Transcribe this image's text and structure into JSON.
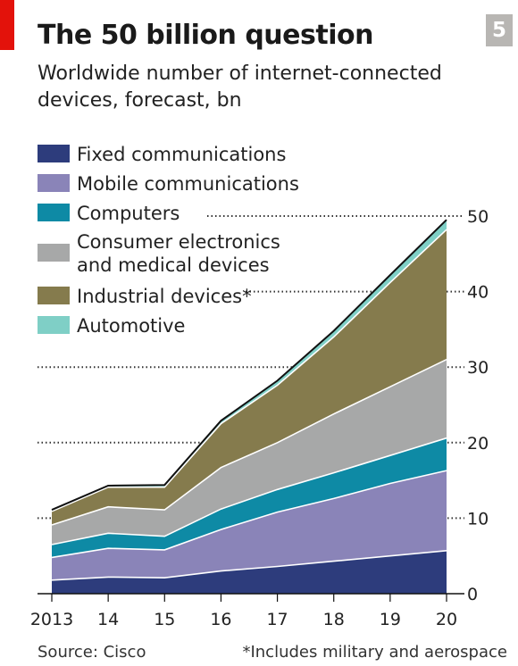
{
  "header": {
    "badge": "5",
    "title": "The 50 billion question",
    "subtitle": "Worldwide number of internet-connected devices, forecast, bn"
  },
  "footer": {
    "source": "Source: Cisco",
    "footnote": "*Includes military and aerospace"
  },
  "colors": {
    "accent_red": "#e3120b",
    "badge_grey": "#b8b6b3"
  },
  "chart_data": {
    "type": "area",
    "stacked": true,
    "x": [
      "2013",
      "14",
      "15",
      "16",
      "17",
      "18",
      "19",
      "20"
    ],
    "ylim": [
      0,
      50
    ],
    "yticks": [
      0,
      10,
      20,
      30,
      40,
      50
    ],
    "grid": "dotted",
    "legend_position": "top-left",
    "series": [
      {
        "name": "Fixed communications",
        "color": "#2d3c7c",
        "values": [
          1.8,
          2.2,
          2.1,
          3.0,
          3.6,
          4.3,
          5.0,
          5.7
        ]
      },
      {
        "name": "Mobile communications",
        "color": "#8a84b8",
        "values": [
          3.0,
          3.8,
          3.7,
          5.5,
          7.2,
          8.3,
          9.6,
          10.6
        ]
      },
      {
        "name": "Computers",
        "color": "#0e8aa5",
        "values": [
          1.7,
          2.0,
          1.8,
          2.7,
          3.0,
          3.4,
          3.7,
          4.3
        ]
      },
      {
        "name": "Consumer electronics and medical devices",
        "color": "#a7a8a8",
        "values": [
          2.6,
          3.5,
          3.5,
          5.5,
          6.2,
          7.8,
          9.1,
          10.4
        ]
      },
      {
        "name": "Industrial devices*",
        "color": "#857b4d",
        "values": [
          1.8,
          2.6,
          3.0,
          5.8,
          7.6,
          10.2,
          13.8,
          17.2
        ]
      },
      {
        "name": "Automotive",
        "color": "#7fcfc6",
        "values": [
          0.2,
          0.2,
          0.3,
          0.4,
          0.6,
          0.8,
          1.0,
          1.3
        ]
      }
    ]
  }
}
